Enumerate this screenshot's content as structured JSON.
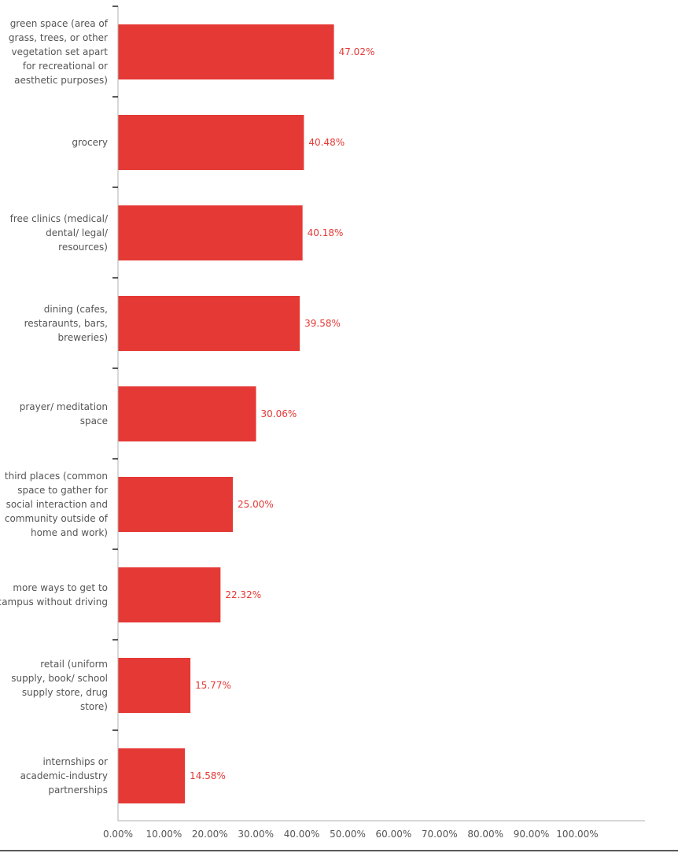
{
  "chart_data": {
    "type": "bar",
    "orientation": "horizontal",
    "categories": [
      [
        "green space (area of",
        "grass, trees, or other",
        "vegetation set apart",
        "for recreational or",
        "aesthetic purposes)"
      ],
      [
        "grocery"
      ],
      [
        "free clinics (medical/",
        "dental/ legal/",
        "resources)"
      ],
      [
        "dining (cafes,",
        "restaraunts, bars,",
        "breweries)"
      ],
      [
        "prayer/ meditation",
        "space"
      ],
      [
        "third places (common",
        "space to gather for",
        "social interaction and",
        "community outside of",
        "home and work)"
      ],
      [
        "more ways to get to",
        "campus without driving"
      ],
      [
        "retail (uniform",
        "supply, book/ school",
        "supply store, drug",
        "store)"
      ],
      [
        "internships or",
        "academic-industry",
        "partnerships"
      ]
    ],
    "values": [
      47.02,
      40.48,
      40.18,
      39.58,
      30.06,
      25.0,
      22.32,
      15.77,
      14.58
    ],
    "value_labels": [
      "47.02%",
      "40.48%",
      "40.18%",
      "39.58%",
      "30.06%",
      "25.00%",
      "22.32%",
      "15.77%",
      "14.58%"
    ],
    "x_ticks": [
      "0.00%",
      "10.00%",
      "20.00%",
      "30.00%",
      "40.00%",
      "50.00%",
      "60.00%",
      "70.00%",
      "80.00%",
      "90.00%",
      "100.00%"
    ],
    "xlim": [
      0,
      100
    ],
    "bar_color": "#e53935",
    "label_color": "#e53935",
    "grid": false,
    "legend": "none"
  }
}
